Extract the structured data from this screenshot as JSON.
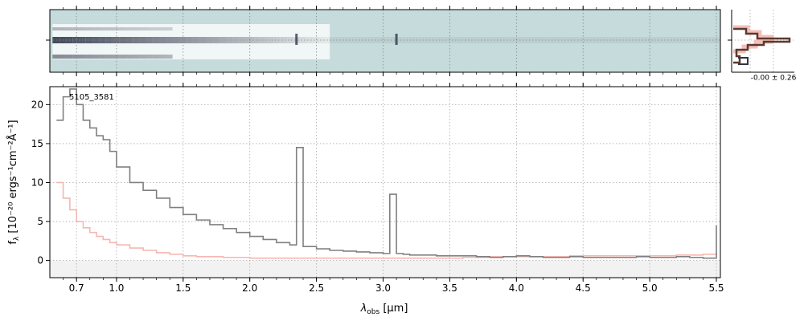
{
  "chart_data": [
    {
      "type": "heatmap",
      "panel": "2D spectrum",
      "description_colors": {
        "background": "#c6dbdb",
        "trace": "#1a2236"
      },
      "trace_features": [
        {
          "x_um": 2.35,
          "note": "emission line"
        },
        {
          "x_um": 3.1,
          "note": "emission line"
        }
      ],
      "xlim": [
        0.5,
        5.53
      ],
      "xticks": [
        "0.7",
        "1.0",
        "1.5",
        "2.0",
        "2.5",
        "3.0",
        "3.5",
        "4.0",
        "4.5",
        "5.0",
        "5.5"
      ]
    },
    {
      "type": "line",
      "panel": "profile",
      "label": "-0.00 ± 0.26",
      "series": [
        {
          "color": "#5a3a2e"
        },
        {
          "color": "#f5b7b1"
        },
        {
          "color": "#333344"
        }
      ]
    },
    {
      "type": "line",
      "panel": "1D spectrum",
      "annotation": "5105_3581",
      "xlabel_main": "λ",
      "xlabel_sub": "obs",
      "xlabel_unit": " [μm]",
      "ylabel_main": "f",
      "ylabel_sub": "λ",
      "ylabel_unit": " [10⁻²⁰ ergs⁻¹cm⁻²Å⁻¹]",
      "xlim": [
        0.5,
        5.53
      ],
      "ylim": [
        -2.2,
        22.3
      ],
      "yticks": [
        0,
        5,
        10,
        15,
        20
      ],
      "xticks": [
        "0.7",
        "1.0",
        "1.5",
        "2.0",
        "2.5",
        "3.0",
        "3.5",
        "4.0",
        "4.5",
        "5.0",
        "5.5"
      ],
      "grid": true,
      "series": [
        {
          "color": "#808080",
          "x": [
            0.55,
            0.6,
            0.65,
            0.7,
            0.75,
            0.8,
            0.85,
            0.9,
            0.95,
            1.0,
            1.1,
            1.2,
            1.3,
            1.4,
            1.5,
            1.6,
            1.7,
            1.8,
            1.9,
            2.0,
            2.1,
            2.2,
            2.3,
            2.35,
            2.4,
            2.5,
            2.6,
            2.7,
            2.8,
            2.9,
            3.0,
            3.05,
            3.1,
            3.15,
            3.2,
            3.3,
            3.4,
            3.5,
            3.6,
            3.7,
            3.8,
            3.9,
            4.0,
            4.1,
            4.2,
            4.3,
            4.4,
            4.5,
            4.6,
            4.7,
            4.8,
            4.9,
            5.0,
            5.1,
            5.2,
            5.3,
            5.4,
            5.5
          ],
          "y": [
            18,
            21,
            22,
            20,
            18,
            17,
            16,
            15.5,
            14,
            12,
            10,
            9,
            8,
            6.8,
            5.9,
            5.2,
            4.6,
            4.1,
            3.6,
            3.1,
            2.7,
            2.3,
            2.0,
            14.5,
            1.8,
            1.5,
            1.3,
            1.2,
            1.1,
            1.0,
            0.9,
            8.5,
            0.9,
            0.8,
            0.7,
            0.7,
            0.6,
            0.6,
            0.6,
            0.5,
            0.4,
            0.5,
            0.6,
            0.5,
            0.4,
            0.4,
            0.5,
            0.4,
            0.4,
            0.4,
            0.4,
            0.5,
            0.4,
            0.4,
            0.5,
            0.4,
            0.3,
            4.5
          ]
        },
        {
          "color": "#f5b7b1",
          "x": [
            0.55,
            0.6,
            0.65,
            0.7,
            0.75,
            0.8,
            0.85,
            0.9,
            0.95,
            1.0,
            1.1,
            1.2,
            1.3,
            1.4,
            1.5,
            1.6,
            1.8,
            2.0,
            2.2,
            2.4,
            2.6,
            2.8,
            3.0,
            3.2,
            3.4,
            3.6,
            3.8,
            4.0,
            4.2,
            4.4,
            4.6,
            4.8,
            5.0,
            5.2,
            5.4,
            5.5
          ],
          "y": [
            10,
            8,
            6.5,
            5,
            4.2,
            3.6,
            3.1,
            2.7,
            2.3,
            2.0,
            1.6,
            1.3,
            1.0,
            0.8,
            0.6,
            0.5,
            0.4,
            0.3,
            0.3,
            0.3,
            0.3,
            0.3,
            0.3,
            0.3,
            0.3,
            0.4,
            0.5,
            0.5,
            0.5,
            0.6,
            0.6,
            0.6,
            0.6,
            0.7,
            0.8,
            1.0
          ]
        }
      ]
    }
  ]
}
